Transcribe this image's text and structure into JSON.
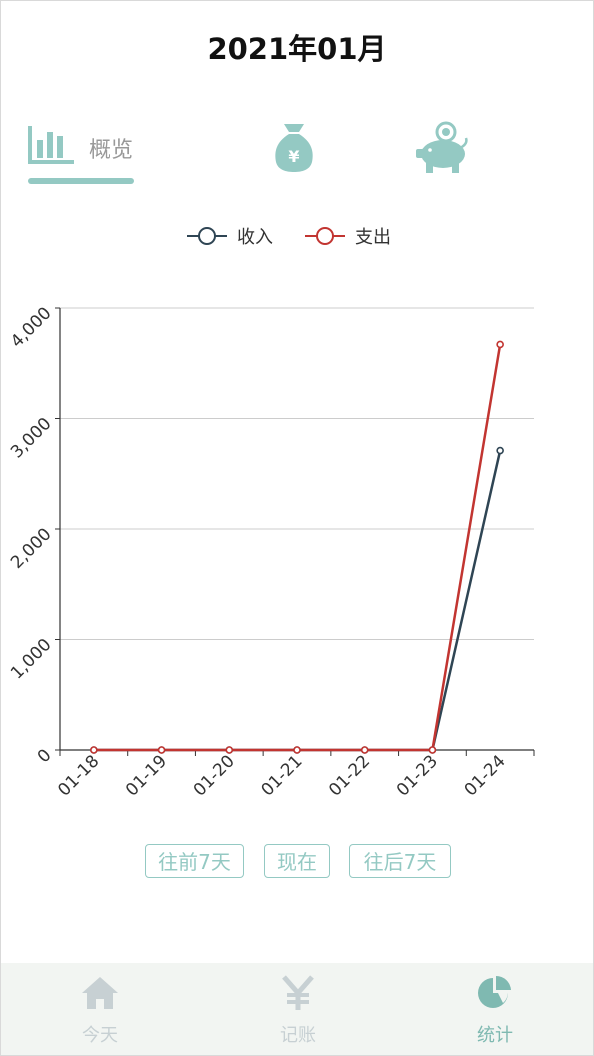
{
  "header": {
    "title": "2021年01月"
  },
  "tabs": [
    {
      "label": "概览",
      "icon": "bar-chart-icon",
      "active": true
    },
    {
      "label": "",
      "icon": "money-bag-icon",
      "active": false
    },
    {
      "label": "",
      "icon": "piggy-bank-icon",
      "active": false
    }
  ],
  "colors": {
    "accent": "#94c9c3",
    "income": "#2f4554",
    "expense": "#c23531",
    "inactive": "#c7d0d3"
  },
  "chart_data": {
    "type": "line",
    "categories": [
      "01-18",
      "01-19",
      "01-20",
      "01-21",
      "01-22",
      "01-23",
      "01-24"
    ],
    "series": [
      {
        "name": "收入",
        "color": "#2f4554",
        "values": [
          0,
          0,
          0,
          0,
          0,
          0,
          2710
        ]
      },
      {
        "name": "支出",
        "color": "#c23531",
        "values": [
          0,
          0,
          0,
          0,
          0,
          0,
          3670
        ]
      }
    ],
    "ylim": [
      0,
      4000
    ],
    "yticks": [
      0,
      1000,
      2000,
      3000,
      4000
    ],
    "ytick_labels": [
      "0",
      "1,000",
      "2,000",
      "3,000",
      "4,000"
    ],
    "grid": true,
    "legend_position": "top-center"
  },
  "nav_buttons": {
    "prev": "往前7天",
    "now": "现在",
    "next": "往后7天"
  },
  "bottom_nav": [
    {
      "label": "今天",
      "icon": "home-icon",
      "active": false
    },
    {
      "label": "记账",
      "icon": "yen-icon",
      "active": false
    },
    {
      "label": "统计",
      "icon": "pie-chart-icon",
      "active": true
    }
  ]
}
